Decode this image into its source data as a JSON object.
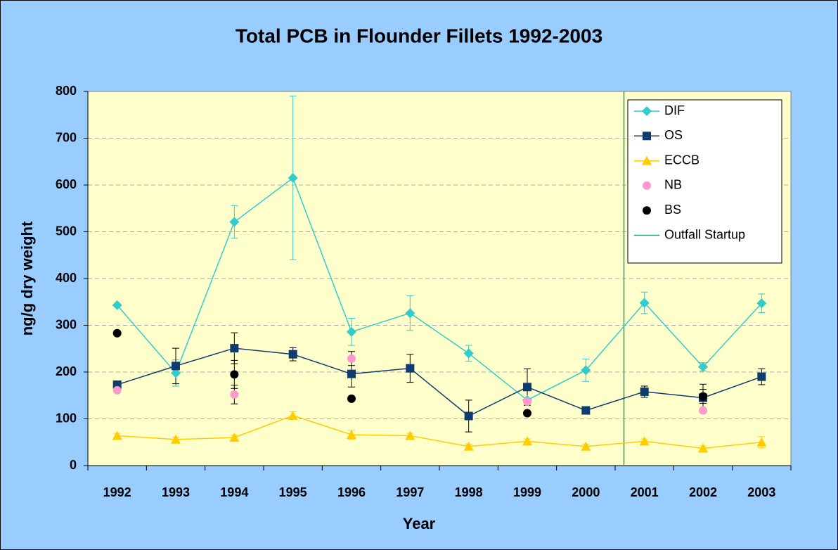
{
  "chart_data": {
    "type": "line",
    "title": "Total PCB in Flounder Fillets 1992-2003",
    "xlabel": "Year",
    "ylabel": "ng/g dry weight",
    "categories": [
      "1992",
      "1993",
      "1994",
      "1995",
      "1996",
      "1997",
      "1998",
      "1999",
      "2000",
      "2001",
      "2002",
      "2003"
    ],
    "ylim": [
      0,
      800
    ],
    "yticks": [
      0,
      100,
      200,
      300,
      400,
      500,
      600,
      700,
      800
    ],
    "grid": true,
    "legend": "upper right",
    "series": [
      {
        "name": "DIF",
        "color": "#33cccc",
        "marker": "diamond",
        "line": true,
        "values": [
          343,
          198,
          521,
          615,
          286,
          326,
          240,
          140,
          204,
          348,
          211,
          347
        ],
        "errors": [
          null,
          28,
          35,
          175,
          29,
          37,
          17,
          null,
          24,
          23,
          9,
          20
        ]
      },
      {
        "name": "OS",
        "color": "#0f3b6e",
        "marker": "square",
        "line": true,
        "values": [
          173,
          213,
          251,
          238,
          196,
          208,
          106,
          168,
          118,
          158,
          145,
          190
        ],
        "errors": [
          null,
          38,
          33,
          14,
          28,
          30,
          34,
          39,
          null,
          12,
          29,
          17
        ]
      },
      {
        "name": "ECCB",
        "color": "#ffcc00",
        "marker": "triangle",
        "line": true,
        "values": [
          64,
          56,
          60,
          107,
          66,
          64,
          41,
          52,
          41,
          52,
          37,
          50
        ],
        "errors": [
          5,
          5,
          5,
          8,
          10,
          5,
          5,
          5,
          5,
          5,
          5,
          12
        ]
      },
      {
        "name": "NB",
        "color": "#ff99cc",
        "marker": "circle",
        "line": false,
        "values": [
          161,
          null,
          152,
          null,
          229,
          null,
          null,
          137,
          null,
          null,
          118,
          null
        ],
        "errors": [
          null,
          null,
          20,
          null,
          15,
          null,
          null,
          null,
          null,
          null,
          null,
          null
        ]
      },
      {
        "name": "BS",
        "color": "#000000",
        "marker": "circle",
        "line": false,
        "values": [
          283,
          null,
          195,
          null,
          143,
          null,
          null,
          112,
          null,
          null,
          148,
          null
        ],
        "errors": [
          null,
          null,
          30,
          null,
          null,
          null,
          null,
          null,
          null,
          null,
          15,
          null
        ]
      }
    ],
    "vline": {
      "name": "Outfall Startup",
      "x": 2000.65,
      "color": "#339966"
    }
  }
}
